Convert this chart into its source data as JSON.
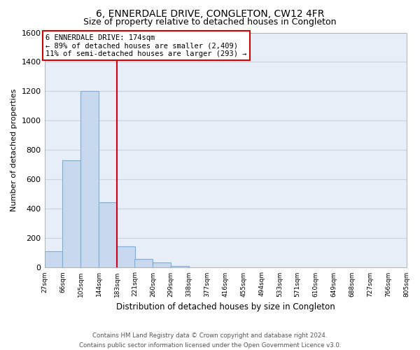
{
  "title": "6, ENNERDALE DRIVE, CONGLETON, CW12 4FR",
  "subtitle": "Size of property relative to detached houses in Congleton",
  "xlabel": "Distribution of detached houses by size in Congleton",
  "ylabel": "Number of detached properties",
  "bar_color": "#c8d9ee",
  "bar_edge_color": "#7aaed6",
  "background_color": "#ffffff",
  "plot_bg_color": "#e8eef8",
  "grid_color": "#c8d4e4",
  "ref_line_color": "#cc0000",
  "bin_edges": [
    27,
    66,
    105,
    144,
    183,
    221,
    260,
    299,
    338,
    377,
    416,
    455,
    494,
    533,
    571,
    610,
    649,
    688,
    727,
    766,
    805
  ],
  "bar_heights": [
    110,
    730,
    1200,
    445,
    145,
    60,
    35,
    10,
    0,
    0,
    0,
    0,
    0,
    0,
    0,
    0,
    0,
    0,
    0,
    0
  ],
  "ylim": [
    0,
    1600
  ],
  "yticks": [
    0,
    200,
    400,
    600,
    800,
    1000,
    1200,
    1400,
    1600
  ],
  "annotation_title": "6 ENNERDALE DRIVE: 174sqm",
  "annotation_line1": "← 89% of detached houses are smaller (2,409)",
  "annotation_line2": "11% of semi-detached houses are larger (293) →",
  "annotation_box_color": "#ffffff",
  "annotation_box_edge": "#cc0000",
  "footer_line1": "Contains HM Land Registry data © Crown copyright and database right 2024.",
  "footer_line2": "Contains public sector information licensed under the Open Government Licence v3.0.",
  "title_fontsize": 10,
  "subtitle_fontsize": 9,
  "tick_labels": [
    "27sqm",
    "66sqm",
    "105sqm",
    "144sqm",
    "183sqm",
    "221sqm",
    "260sqm",
    "299sqm",
    "338sqm",
    "377sqm",
    "416sqm",
    "455sqm",
    "494sqm",
    "533sqm",
    "571sqm",
    "610sqm",
    "649sqm",
    "688sqm",
    "727sqm",
    "766sqm",
    "805sqm"
  ]
}
